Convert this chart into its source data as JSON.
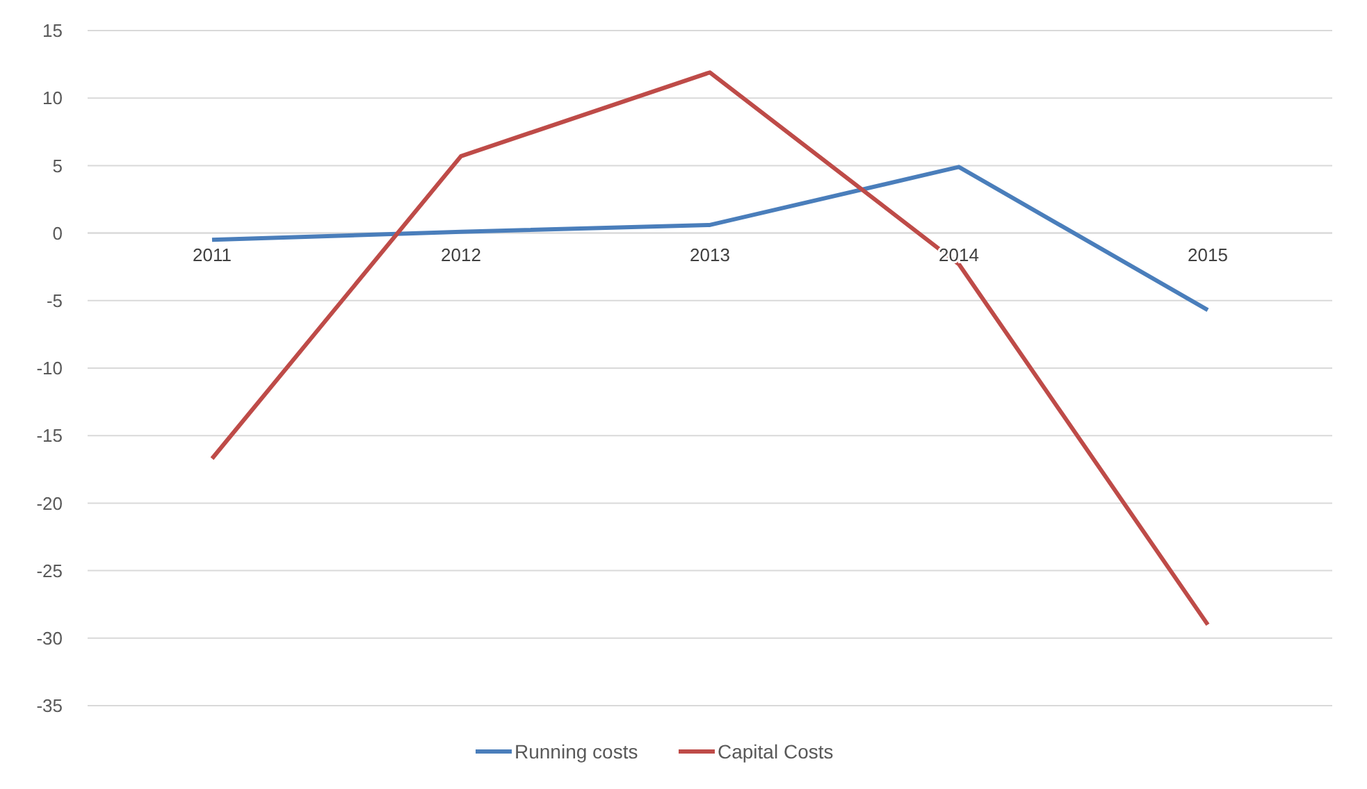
{
  "chart_data": {
    "type": "line",
    "categories": [
      "2011",
      "2012",
      "2013",
      "2014",
      "2015"
    ],
    "series": [
      {
        "name": "Running costs",
        "color": "#4a7ebb",
        "values": [
          -0.5,
          0.1,
          0.6,
          4.9,
          -5.7
        ]
      },
      {
        "name": "Capital Costs",
        "color": "#be4b48",
        "values": [
          -16.7,
          5.7,
          11.9,
          -2.3,
          -29.0
        ]
      }
    ],
    "ylim": [
      -35,
      15
    ],
    "yticks": [
      -35,
      -30,
      -25,
      -20,
      -15,
      -10,
      -5,
      0,
      5,
      10,
      15
    ],
    "grid": "y",
    "legend": "bottom",
    "marker": "none",
    "line_style": "solid"
  }
}
